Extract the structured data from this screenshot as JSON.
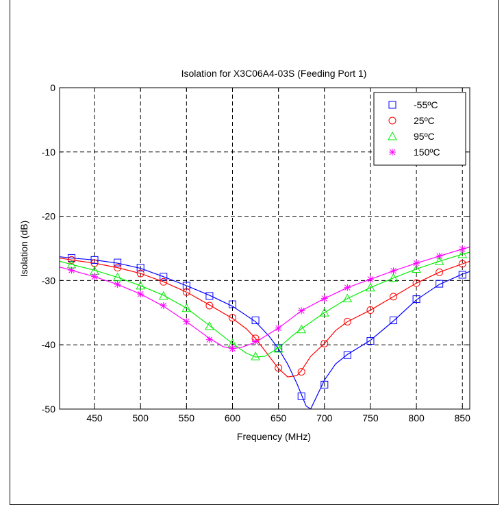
{
  "chart_data": {
    "type": "line",
    "title": "Isolation for X3C06A4-03S (Feeding Port 1)",
    "xlabel": "Frequency (MHz)",
    "ylabel": "Isolation (dB)",
    "xlim": [
      412,
      858
    ],
    "ylim": [
      -50,
      0
    ],
    "xticks": [
      450,
      500,
      550,
      600,
      650,
      700,
      750,
      800,
      850
    ],
    "yticks": [
      0,
      -10,
      -20,
      -30,
      -40,
      -50
    ],
    "grid": true,
    "legend_position": "top-right",
    "series": [
      {
        "name": "-55ºC",
        "color": "#0000ff",
        "marker": "square",
        "markers": {
          "x": [
            425,
            450,
            475,
            500,
            525,
            550,
            575,
            600,
            625,
            650,
            675,
            700,
            725,
            750,
            775,
            800,
            825,
            850
          ],
          "y": [
            -26.5,
            -26.8,
            -27.2,
            -28.0,
            -29.4,
            -30.8,
            -32.4,
            -33.7,
            -36.2,
            -40.5,
            -48.0,
            -46.2,
            -41.6,
            -39.4,
            -36.2,
            -32.9,
            -30.5,
            -29.1
          ]
        },
        "line": {
          "x": [
            412,
            425,
            450,
            475,
            500,
            525,
            550,
            575,
            600,
            625,
            640,
            650,
            660,
            670,
            680,
            685,
            690,
            700,
            712,
            725,
            750,
            775,
            800,
            825,
            850,
            858
          ],
          "y": [
            -26.3,
            -26.5,
            -26.8,
            -27.3,
            -28.1,
            -29.4,
            -30.8,
            -32.3,
            -34.0,
            -36.4,
            -38.7,
            -40.6,
            -43.0,
            -46.0,
            -49.5,
            -50.0,
            -48.5,
            -45.5,
            -43.0,
            -41.5,
            -39.3,
            -36.3,
            -33.0,
            -30.6,
            -29.0,
            -28.6
          ]
        }
      },
      {
        "name": "25ºC",
        "color": "#ff0000",
        "marker": "circle",
        "markers": {
          "x": [
            425,
            450,
            475,
            500,
            525,
            550,
            575,
            600,
            625,
            650,
            675,
            700,
            725,
            750,
            775,
            800,
            825,
            850
          ],
          "y": [
            -26.8,
            -27.3,
            -28.0,
            -28.9,
            -30.2,
            -31.8,
            -33.9,
            -35.8,
            -39.0,
            -43.6,
            -44.2,
            -39.8,
            -36.4,
            -34.6,
            -32.5,
            -30.4,
            -28.7,
            -27.4
          ]
        },
        "line": {
          "x": [
            412,
            425,
            450,
            475,
            500,
            525,
            550,
            575,
            600,
            615,
            625,
            640,
            650,
            660,
            670,
            675,
            685,
            700,
            712,
            725,
            750,
            775,
            800,
            825,
            850,
            858
          ],
          "y": [
            -26.5,
            -26.8,
            -27.3,
            -28.0,
            -28.9,
            -30.2,
            -31.8,
            -33.8,
            -35.9,
            -37.5,
            -39.0,
            -41.8,
            -43.7,
            -45.0,
            -44.8,
            -44.0,
            -41.8,
            -39.8,
            -37.8,
            -36.4,
            -34.6,
            -32.5,
            -30.4,
            -28.7,
            -27.4,
            -27.0
          ]
        }
      },
      {
        "name": "95ºC",
        "color": "#00ee00",
        "marker": "triangle",
        "markers": {
          "x": [
            425,
            450,
            475,
            500,
            525,
            550,
            575,
            600,
            625,
            650,
            675,
            700,
            725,
            750,
            775,
            800,
            825,
            850
          ],
          "y": [
            -27.5,
            -28.5,
            -29.5,
            -30.8,
            -32.4,
            -34.3,
            -37.1,
            -39.8,
            -41.8,
            -40.6,
            -37.6,
            -35.0,
            -32.8,
            -31.1,
            -29.6,
            -28.2,
            -27.0,
            -25.9
          ]
        },
        "line": {
          "x": [
            412,
            425,
            450,
            475,
            500,
            525,
            550,
            575,
            600,
            615,
            625,
            635,
            650,
            665,
            675,
            700,
            725,
            750,
            775,
            800,
            825,
            850,
            858
          ],
          "y": [
            -27.0,
            -27.5,
            -28.4,
            -29.5,
            -30.8,
            -32.3,
            -34.3,
            -37.0,
            -39.8,
            -41.3,
            -41.9,
            -41.8,
            -40.5,
            -38.6,
            -37.5,
            -35.0,
            -32.8,
            -31.1,
            -29.6,
            -28.2,
            -27.0,
            -25.9,
            -25.6
          ]
        }
      },
      {
        "name": "150ºC",
        "color": "#ff00ff",
        "marker": "star",
        "markers": {
          "x": [
            425,
            450,
            475,
            500,
            525,
            550,
            575,
            600,
            625,
            650,
            675,
            700,
            725,
            750,
            775,
            800,
            825,
            850
          ],
          "y": [
            -28.4,
            -29.4,
            -30.6,
            -32.1,
            -33.9,
            -36.4,
            -39.2,
            -40.6,
            -39.5,
            -37.4,
            -34.7,
            -32.8,
            -31.1,
            -29.8,
            -28.5,
            -27.3,
            -26.2,
            -25.1
          ]
        },
        "line": {
          "x": [
            412,
            425,
            450,
            475,
            500,
            525,
            550,
            575,
            590,
            600,
            610,
            625,
            650,
            675,
            700,
            725,
            750,
            775,
            800,
            825,
            850,
            858
          ],
          "y": [
            -27.9,
            -28.4,
            -29.4,
            -30.6,
            -32.1,
            -34.0,
            -36.4,
            -39.0,
            -40.3,
            -40.6,
            -40.4,
            -39.6,
            -37.4,
            -34.7,
            -32.8,
            -31.1,
            -29.8,
            -28.5,
            -27.3,
            -26.2,
            -25.1,
            -24.8
          ]
        }
      }
    ]
  }
}
